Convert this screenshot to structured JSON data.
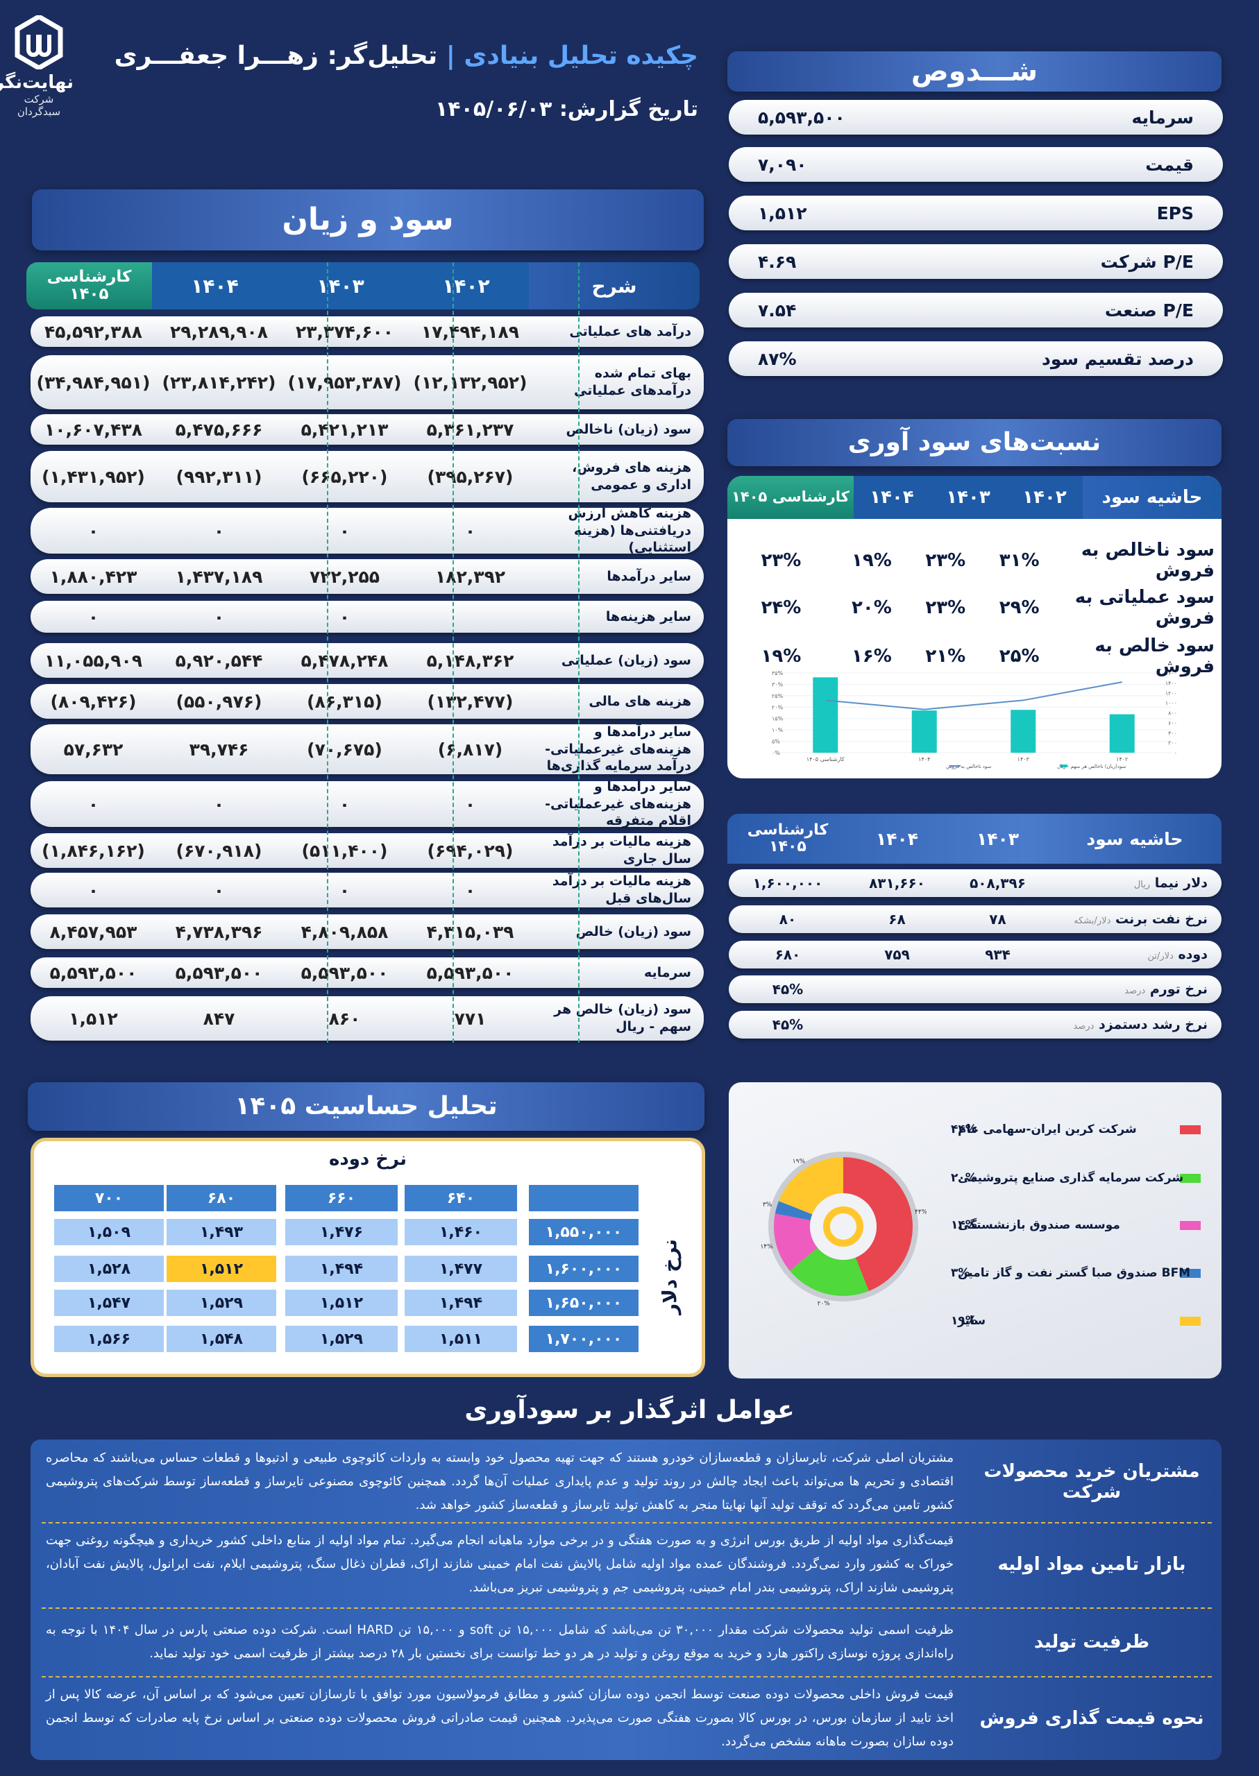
{
  "header": {
    "brand_name": "نهایت‌نگر",
    "brand_sub": "شرکت سبدگردان",
    "title_part1": "چکیده تحلیل بنیادی |",
    "title_part2": " تحلیل‌گر: زهـــرا جعفـــری",
    "report_date_label": "تاریخ گزارش:",
    "report_date": "۱۴۰۵/۰۶/۰۳"
  },
  "shares": {
    "title": "شـــدوص",
    "items": [
      {
        "label": "سرمایه",
        "value": "۵,۵۹۳,۵۰۰"
      },
      {
        "label": "قیمت",
        "value": "۷,۰۹۰"
      },
      {
        "label": "EPS",
        "value": "۱,۵۱۲"
      },
      {
        "label": "P/E شرکت",
        "value": "۴.۶۹"
      },
      {
        "label": "P/E صنعت",
        "value": "۷.۵۴"
      },
      {
        "label": "درصد تقسیم سود",
        "value": "۸۷%"
      }
    ]
  },
  "pl": {
    "title": "سود و زیان",
    "headers": [
      "شرح",
      "۱۴۰۲",
      "۱۴۰۳",
      "۱۴۰۴",
      "کارشناسی ۱۴۰۵"
    ],
    "rows": [
      {
        "label": "درآمد های عملیاتی",
        "v": [
          "۱۷,۴۹۴,۱۸۹",
          "۲۳,۳۷۴,۶۰۰",
          "۲۹,۲۸۹,۹۰۸",
          "۴۵,۵۹۲,۳۸۸"
        ],
        "neg": false
      },
      {
        "label": "بهای تمام شده درآمدهای عملیاتی",
        "v": [
          "(۱۲,۱۳۲,۹۵۲)",
          "(۱۷,۹۵۳,۳۸۷)",
          "(۲۳,۸۱۴,۲۴۲)",
          "(۳۴,۹۸۴,۹۵۱)"
        ],
        "neg": true
      },
      {
        "label": "سود (زیان) ناخالص",
        "v": [
          "۵,۳۶۱,۲۳۷",
          "۵,۴۲۱,۲۱۳",
          "۵,۴۷۵,۶۶۶",
          "۱۰,۶۰۷,۴۳۸"
        ],
        "neg": false
      },
      {
        "label": "هزینه های فروش، اداری و عمومی",
        "v": [
          "(۳۹۵,۲۶۷)",
          "(۶۶۵,۲۲۰)",
          "(۹۹۲,۳۱۱)",
          "(۱,۴۳۱,۹۵۲)"
        ],
        "neg": true
      },
      {
        "label": "هزینه کاهش ارزش دریافتنی‌ها (هزینه استثنایی)",
        "v": [
          "۰",
          "۰",
          "۰",
          "۰"
        ],
        "neg": false
      },
      {
        "label": "سایر درآمدها",
        "v": [
          "۱۸۲,۳۹۲",
          "۷۲۲,۲۵۵",
          "۱,۴۳۷,۱۸۹",
          "۱,۸۸۰,۴۲۳"
        ],
        "neg": false
      },
      {
        "label": "سایر هزینه‌ها",
        "v": [
          "",
          "۰",
          "۰",
          "۰"
        ],
        "neg": false
      },
      {
        "label": "سود (زیان) عملیاتی",
        "v": [
          "۵,۱۴۸,۳۶۲",
          "۵,۴۷۸,۲۴۸",
          "۵,۹۲۰,۵۴۴",
          "۱۱,۰۵۵,۹۰۹"
        ],
        "neg": false
      },
      {
        "label": "هزینه های مالی",
        "v": [
          "(۱۳۲,۴۷۷)",
          "(۸۶,۳۱۵)",
          "(۵۵۰,۹۷۶)",
          "(۸۰۹,۴۲۶)"
        ],
        "neg": true
      },
      {
        "label": "سایر درآمدها و هزینه‌های غیرعملیاتی- درآمد سرمایه گذاری‌ها",
        "v": [
          "(۶,۸۱۷)",
          "(۷۰,۶۷۵)",
          "۳۹,۷۴۶",
          "۵۷,۶۳۲"
        ],
        "neg": false
      },
      {
        "label": "سایر درآمدها و هزینه‌های غیرعملیاتی- اقلام متفرقه",
        "v": [
          "۰",
          "۰",
          "۰",
          "۰"
        ],
        "neg": false
      },
      {
        "label": "هزینه مالیات بر درآمد سال جاری",
        "v": [
          "(۶۹۴,۰۲۹)",
          "(۵۱۱,۴۰۰)",
          "(۶۷۰,۹۱۸)",
          "(۱,۸۴۶,۱۶۲)"
        ],
        "neg": true
      },
      {
        "label": "هزینه مالیات بر درآمد سال‌های قبل",
        "v": [
          "۰",
          "۰",
          "۰",
          "۰"
        ],
        "neg": false
      },
      {
        "label": "سود (زیان) خالص",
        "v": [
          "۴,۳۱۵,۰۳۹",
          "۴,۸۰۹,۸۵۸",
          "۴,۷۳۸,۳۹۶",
          "۸,۴۵۷,۹۵۳"
        ],
        "neg": false
      },
      {
        "label": "سرمایه",
        "v": [
          "۵,۵۹۳,۵۰۰",
          "۵,۵۹۳,۵۰۰",
          "۵,۵۹۳,۵۰۰",
          "۵,۵۹۳,۵۰۰"
        ],
        "neg": false
      },
      {
        "label": "سود (زیان) خالص هر سهم - ریال",
        "v": [
          "۷۷۱",
          "۸۶۰",
          "۸۴۷",
          "۱,۵۱۲"
        ],
        "neg": false
      }
    ]
  },
  "ratios": {
    "title": "نسبت‌های سود آوری",
    "headers": [
      "حاشیه سود",
      "۱۴۰۲",
      "۱۴۰۳",
      "۱۴۰۴",
      "کارشناسی ۱۴۰۵"
    ],
    "rows": [
      {
        "label": "سود ناخالص به فروش",
        "v": [
          "۳۱%",
          "۲۳%",
          "۱۹%",
          "۲۳%"
        ]
      },
      {
        "label": "سود عملیاتی به فروش",
        "v": [
          "۲۹%",
          "۲۳%",
          "۲۰%",
          "۲۴%"
        ]
      },
      {
        "label": "سود خالص به فروش",
        "v": [
          "۲۵%",
          "۲۱%",
          "۱۶%",
          "۱۹%"
        ]
      }
    ]
  },
  "chart_data": {
    "type": "bar",
    "categories": [
      "۱۴۰۲",
      "۱۴۰۳",
      "۱۴۰۴",
      "کارشناسی ۱۴۰۵"
    ],
    "series": [
      {
        "name": "سود(زیان) ناخالص هر سهم - ریال",
        "type": "bar",
        "axis": "right",
        "values": [
          771,
          860,
          847,
          1512
        ]
      },
      {
        "name": "سود ناخالص به فروش",
        "type": "line",
        "axis": "left",
        "values": [
          31,
          23,
          19,
          23
        ]
      }
    ],
    "ylim_left": [
      0,
      35
    ],
    "ylim_right": [
      0,
      1600
    ],
    "yticks_left": [
      "۰%",
      "۵%",
      "۱۰%",
      "۱۵%",
      "۲۰%",
      "۲۵%",
      "۳۰%",
      "۳۵%"
    ],
    "yticks_right": [
      "۰",
      "۲۰۰",
      "۴۰۰",
      "۶۰۰",
      "۸۰۰",
      "۱۰۰۰",
      "۱۲۰۰",
      "۱۴۰۰",
      "۱۶۰۰"
    ],
    "colors": {
      "bar": "#18c8c0",
      "line": "#5b8fc9"
    }
  },
  "margin_table": {
    "headers": [
      "حاشیه سود",
      "۱۴۰۳",
      "۱۴۰۴",
      "کارشناسی ۱۴۰۵"
    ],
    "rows": [
      {
        "label": "دلار نیما",
        "unit": "ریال",
        "v": [
          "۵۰۸,۳۹۶",
          "۸۳۱,۶۶۰",
          "۱,۶۰۰,۰۰۰"
        ]
      },
      {
        "label": "نرخ نفت برنت",
        "unit": "دلار/بشکه",
        "v": [
          "۷۸",
          "۶۸",
          "۸۰"
        ]
      },
      {
        "label": "دوده",
        "unit": "دلار/تن",
        "v": [
          "۹۳۴",
          "۷۵۹",
          "۶۸۰"
        ]
      },
      {
        "label": "نرخ تورم",
        "unit": "درصد",
        "v": [
          "",
          "",
          "۴۵%"
        ]
      },
      {
        "label": "نرخ رشد دستمزد",
        "unit": "درصد",
        "v": [
          "",
          "",
          "۴۵%"
        ]
      }
    ]
  },
  "sensitivity": {
    "title": "تحلیل حساسیت ۱۴۰۵",
    "col_caption": "نرخ دوده",
    "row_caption": "نرخ دلار",
    "cols": [
      "۶۴۰",
      "۶۶۰",
      "۶۸۰",
      "۷۰۰"
    ],
    "rows": [
      {
        "h": "۱,۵۵۰,۰۰۰",
        "v": [
          "۱,۴۶۰",
          "۱,۴۷۶",
          "۱,۴۹۳",
          "۱,۵۰۹"
        ]
      },
      {
        "h": "۱,۶۰۰,۰۰۰",
        "v": [
          "۱,۴۷۷",
          "۱,۴۹۴",
          "۱,۵۱۲",
          "۱,۵۲۸"
        ]
      },
      {
        "h": "۱,۶۵۰,۰۰۰",
        "v": [
          "۱,۴۹۴",
          "۱,۵۱۲",
          "۱,۵۲۹",
          "۱,۵۴۷"
        ]
      },
      {
        "h": "۱,۷۰۰,۰۰۰",
        "v": [
          "۱,۵۱۱",
          "۱,۵۲۹",
          "۱,۵۴۸",
          "۱,۵۶۶"
        ]
      }
    ],
    "highlight": {
      "row": 1,
      "col": 2
    },
    "highlight_color": "#ffc72c"
  },
  "ownership": {
    "items": [
      {
        "name": "شرکت کربن ایران-سهامی عام",
        "pct": "۴۴%",
        "value": 44,
        "color": "#e8454f"
      },
      {
        "name": "شرکت سرمایه گذاری صنایع پتروشیمی",
        "pct": "۲۰%",
        "value": 20,
        "color": "#4fd93a"
      },
      {
        "name": "موسسه صندوق بازنشستگی",
        "pct": "۱۴%",
        "value": 14,
        "color": "#ee5cbf"
      },
      {
        "name": "BFM صندوق صبا گستر نفت و گاز تامین",
        "pct": "۳%",
        "value": 3,
        "color": "#3a7ec9"
      },
      {
        "name": "سایر",
        "pct": "۱۹%",
        "value": 19,
        "color": "#ffc72c"
      }
    ]
  },
  "factors": {
    "title": "عوامل اثرگذار بر سودآوری",
    "items": [
      {
        "key": "مشتریان خرید محصولات شرکت",
        "text": "مشتریان اصلی شرکت، تایرسازان و قطعه‌سازان خودرو هستند که جهت تهیه محصول خود وابسته به واردات کائوچوی طبیعی و ادتیوها و قطعات حساس می‌باشند که محاصره اقتصادی و تحریم ها می‌تواند باعث ایجاد چالش در روند تولید و عدم پایداری عملیات آن‌ها گردد. همچنین کائوچوی مصنوعی تایرساز و قطعه‌ساز توسط شرکت‌های پتروشیمی کشور تامین می‌گردد که توقف تولید آنها نهایتا منجر به کاهش تولید تایرساز و قطعه‌ساز کشور خواهد شد."
      },
      {
        "key": "بازار تامین مواد اولیه",
        "text": "قیمت‌گذاری مواد اولیه از طریق بورس انرژی و به صورت هفتگی و در برخی موارد ماهیانه انجام می‌گیرد. تمام مواد اولیه از منابع داخلی کشور خریداری و هیچگونه روغنی جهت خوراک به کشور وارد نمی‌گردد. فروشندگان عمده مواد اولیه شامل پالایش نفت امام خمینی شازند اراک، قطران ذغال سنگ، پتروشیمی ایلام، نفت ایرانول، پالایش نفت آبادان، پتروشیمی شازند اراک، پتروشیمی بندر امام خمینی، پتروشیمی جم و پتروشیمی تبریز می‌باشد."
      },
      {
        "key": "ظرفیت تولید",
        "text": "ظرفیت اسمی تولید محصولات شرکت مقدار ۳۰,۰۰۰ تن می‌باشد که شامل ۱۵,۰۰۰ تن soft و ۱۵,۰۰۰ تن HARD است. شرکت دوده صنعتی پارس در سال ۱۴۰۴ با توجه به راه‌اندازی پروژه نوسازی راکتور هارد و خرید به موقع روغن و تولید در هر دو خط توانست برای نخستین بار ۲۸ درصد بیشتر از ظرفیت اسمی خود تولید نماید."
      },
      {
        "key": "نحوه قیمت گذاری فروش",
        "text": "قیمت فروش داخلی محصولات دوده صنعت توسط انجمن دوده سازان کشور و مطابق فرمولاسیون مورد توافق با تارسازان تعیین می‌شود که بر اساس آن، عرضه کالا پس از اخذ تایید از سازمان بورس، در بورس کالا بصورت هفتگی صورت می‌پذیرد. همچنین قیمت صادراتی فروش محصولات دوده صنعتی بر اساس نرخ پایه صادرات که توسط انجمن دوده سازان بصورت ماهانه مشخص می‌گردد."
      }
    ]
  }
}
